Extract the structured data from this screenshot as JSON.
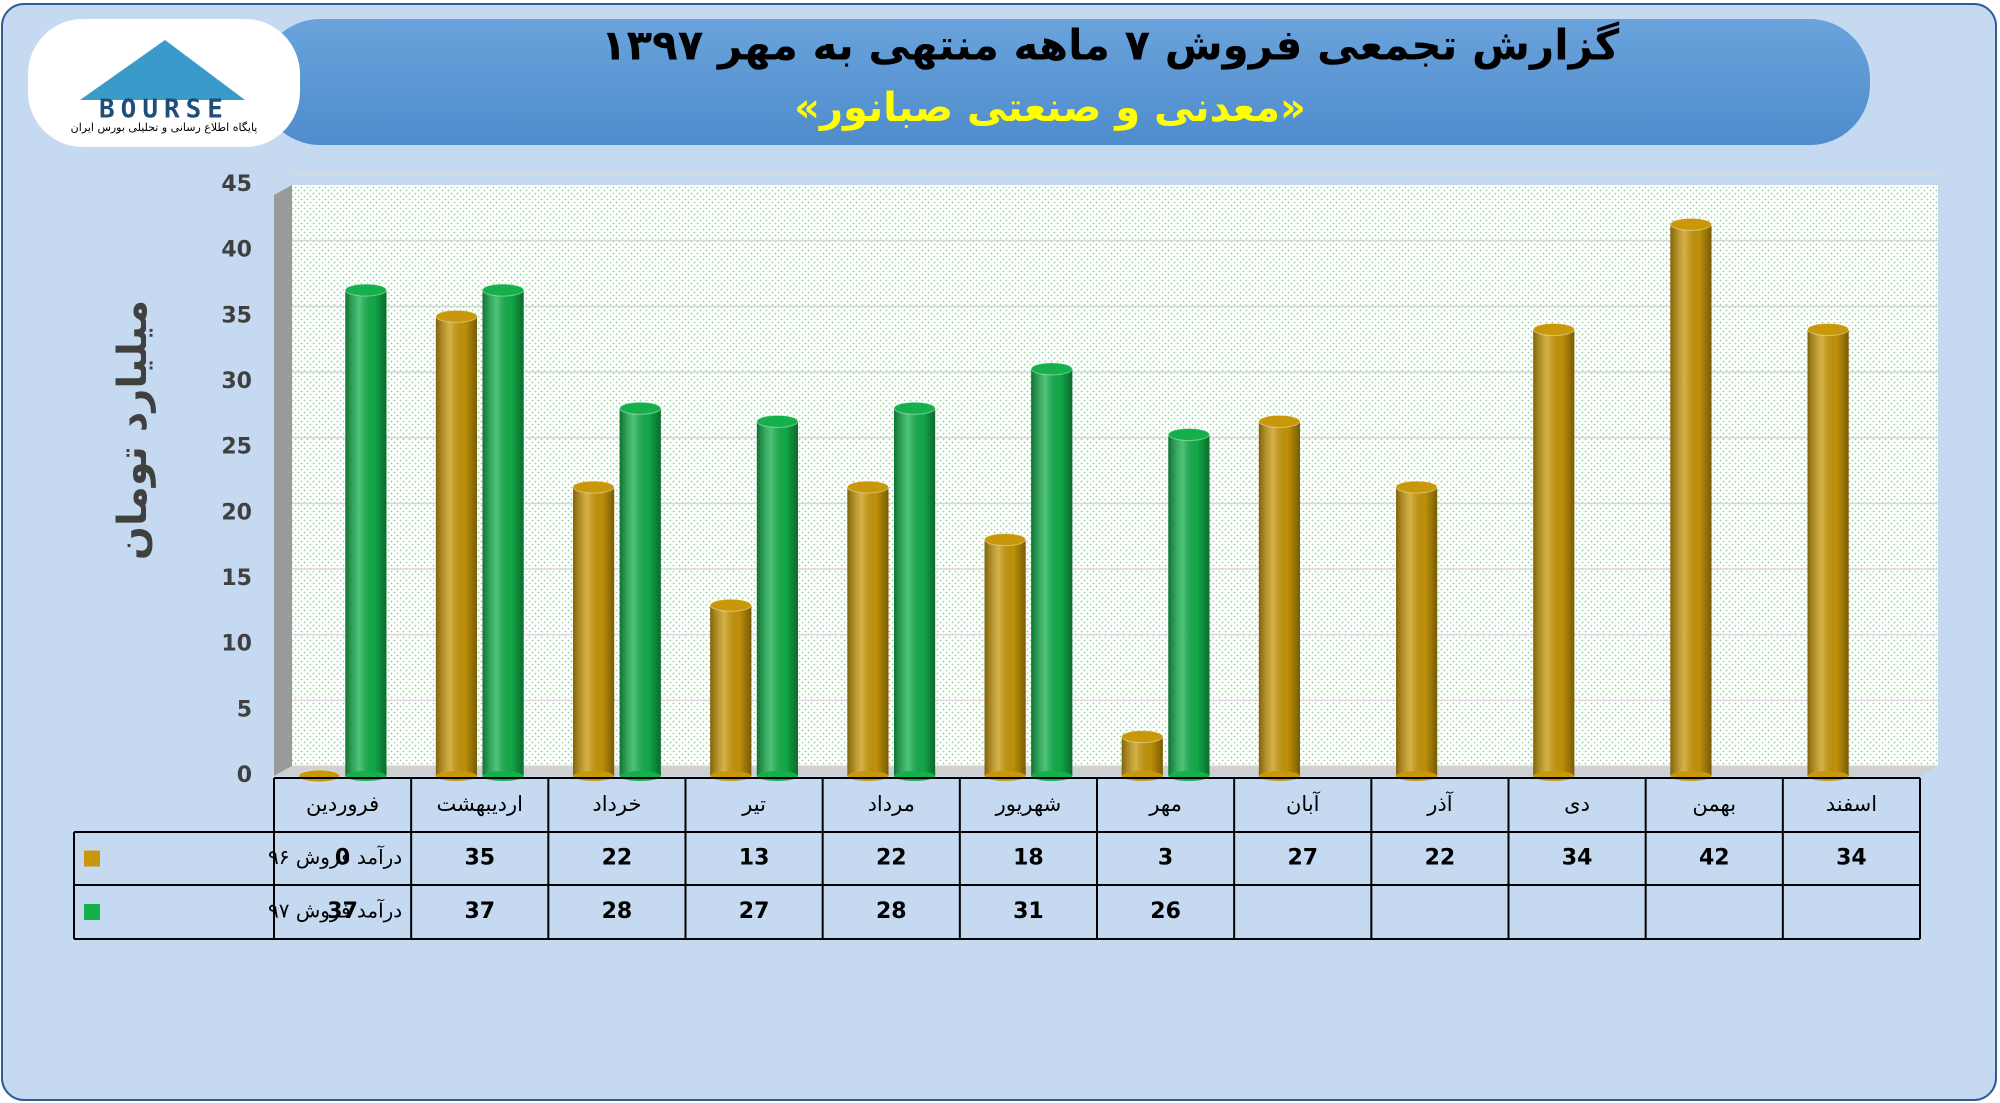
{
  "logo": {
    "text": "BOURSE",
    "tagline": "پایگاه اطلاع رسانی و تحلیلی بورس ایران"
  },
  "chart_data": {
    "type": "bar",
    "title": "گزارش تجمعی فروش ۷ ماهه منتهی به مهر ۱۳۹۷",
    "subtitle": "«معدنی و صنعتی صبانور»",
    "y_label": "میلیارد تومان",
    "categories": [
      "فروردین",
      "اردیبهشت",
      "خرداد",
      "تیر",
      "مرداد",
      "شهریور",
      "مهر",
      "آبان",
      "آذر",
      "دی",
      "بهمن",
      "اسفند"
    ],
    "series": [
      {
        "name": "درآمد فروش ۹۶",
        "color": "#c8980a",
        "values": [
          0,
          35,
          22,
          13,
          22,
          18,
          3,
          27,
          22,
          34,
          42,
          34
        ]
      },
      {
        "name": "درآمد فروش ۹۷",
        "color": "#13b04b",
        "values": [
          37,
          37,
          28,
          27,
          28,
          31,
          26,
          null,
          null,
          null,
          null,
          null
        ]
      }
    ],
    "ylim": [
      0,
      45
    ],
    "yticks": [
      0,
      5,
      10,
      15,
      20,
      25,
      30,
      35,
      40,
      45
    ],
    "grid": true
  }
}
